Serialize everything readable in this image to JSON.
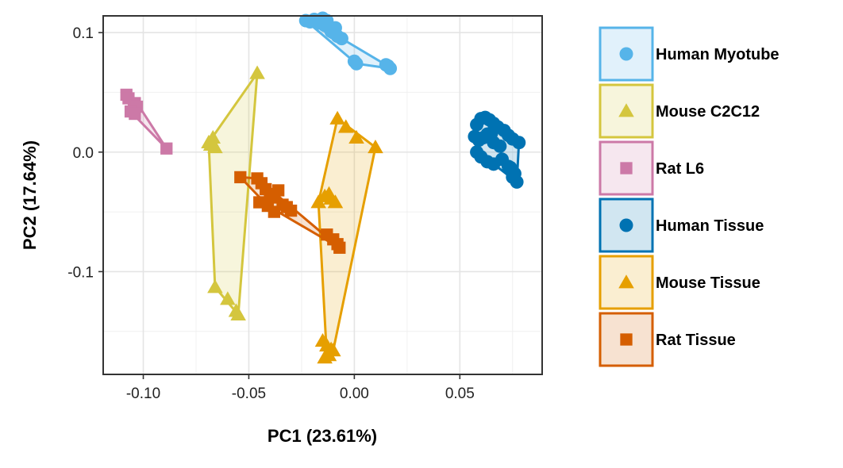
{
  "chart_data": {
    "type": "scatter",
    "xlabel": "PC1 (23.61%)",
    "ylabel": "PC2 (17.64%)",
    "xlim": [
      -0.119,
      0.089
    ],
    "ylim": [
      -0.186,
      0.114
    ],
    "x_ticks": [
      {
        "value": -0.1,
        "label": "-0.10"
      },
      {
        "value": -0.05,
        "label": "-0.05"
      },
      {
        "value": 0.0,
        "label": "0.00"
      },
      {
        "value": 0.05,
        "label": "0.05"
      }
    ],
    "y_ticks": [
      {
        "value": 0.1,
        "label": "0.1"
      },
      {
        "value": 0.0,
        "label": "0.0"
      },
      {
        "value": -0.1,
        "label": "-0.1"
      }
    ],
    "grid": true,
    "hulls": true,
    "legend_position": "right",
    "series": [
      {
        "name": "Human Myotube",
        "color": "#56B4E9",
        "marker": "circle",
        "points": [
          [
            -0.023,
            0.11
          ],
          [
            -0.021,
            0.109
          ],
          [
            -0.019,
            0.111
          ],
          [
            -0.017,
            0.108
          ],
          [
            -0.015,
            0.112
          ],
          [
            -0.013,
            0.11
          ],
          [
            -0.014,
            0.106
          ],
          [
            -0.012,
            0.104
          ],
          [
            -0.01,
            0.1
          ],
          [
            -0.008,
            0.097
          ],
          [
            -0.011,
            0.101
          ],
          [
            -0.009,
            0.104
          ],
          [
            -0.006,
            0.095
          ],
          [
            0.0,
            0.076
          ],
          [
            0.001,
            0.074
          ],
          [
            0.015,
            0.073
          ],
          [
            0.017,
            0.07
          ],
          [
            0.016,
            0.072
          ]
        ],
        "hull": [
          [
            -0.023,
            0.11
          ],
          [
            -0.015,
            0.112
          ],
          [
            -0.006,
            0.095
          ],
          [
            0.015,
            0.073
          ],
          [
            0.017,
            0.07
          ],
          [
            0.001,
            0.074
          ]
        ]
      },
      {
        "name": "Mouse C2C12",
        "color": "#D4C63E",
        "marker": "triangle",
        "points": [
          [
            -0.046,
            0.066
          ],
          [
            -0.067,
            0.012
          ],
          [
            -0.069,
            0.008
          ],
          [
            -0.066,
            0.004
          ],
          [
            -0.068,
            0.006
          ],
          [
            -0.066,
            -0.113
          ],
          [
            -0.06,
            -0.123
          ],
          [
            -0.056,
            -0.133
          ],
          [
            -0.055,
            -0.136
          ]
        ],
        "hull": [
          [
            -0.046,
            0.066
          ],
          [
            -0.069,
            0.008
          ],
          [
            -0.066,
            -0.113
          ],
          [
            -0.055,
            -0.136
          ]
        ]
      },
      {
        "name": "Rat L6",
        "color": "#CC79A7",
        "marker": "square",
        "points": [
          [
            -0.108,
            0.048
          ],
          [
            -0.107,
            0.045
          ],
          [
            -0.104,
            0.041
          ],
          [
            -0.103,
            0.038
          ],
          [
            -0.106,
            0.034
          ],
          [
            -0.104,
            0.032
          ],
          [
            -0.089,
            0.003
          ]
        ],
        "hull": [
          [
            -0.108,
            0.048
          ],
          [
            -0.103,
            0.041
          ],
          [
            -0.089,
            0.003
          ],
          [
            -0.106,
            0.034
          ]
        ]
      },
      {
        "name": "Human Tissue",
        "color": "#0072B2",
        "marker": "circle",
        "points": [
          [
            0.058,
            0.023
          ],
          [
            0.06,
            0.028
          ],
          [
            0.062,
            0.029
          ],
          [
            0.064,
            0.027
          ],
          [
            0.066,
            0.024
          ],
          [
            0.068,
            0.021
          ],
          [
            0.071,
            0.018
          ],
          [
            0.073,
            0.014
          ],
          [
            0.075,
            0.011
          ],
          [
            0.078,
            0.008
          ],
          [
            0.057,
            0.013
          ],
          [
            0.059,
            0.01
          ],
          [
            0.061,
            0.012
          ],
          [
            0.063,
            0.015
          ],
          [
            0.066,
            0.008
          ],
          [
            0.069,
            0.005
          ],
          [
            0.058,
            0.0
          ],
          [
            0.06,
            -0.004
          ],
          [
            0.063,
            -0.008
          ],
          [
            0.066,
            -0.01
          ],
          [
            0.07,
            -0.006
          ],
          [
            0.073,
            -0.012
          ],
          [
            0.076,
            -0.018
          ],
          [
            0.077,
            -0.025
          ],
          [
            0.075,
            -0.021
          ],
          [
            0.074,
            -0.013
          ],
          [
            0.065,
            0.016
          ]
        ],
        "hull": [
          [
            0.06,
            0.028
          ],
          [
            0.064,
            0.027
          ],
          [
            0.078,
            0.008
          ],
          [
            0.077,
            -0.025
          ],
          [
            0.066,
            -0.01
          ],
          [
            0.058,
            0.0
          ],
          [
            0.057,
            0.013
          ]
        ]
      },
      {
        "name": "Mouse Tissue",
        "color": "#E69F00",
        "marker": "triangle",
        "points": [
          [
            -0.008,
            0.028
          ],
          [
            -0.004,
            0.021
          ],
          [
            0.001,
            0.012
          ],
          [
            0.01,
            0.004
          ],
          [
            -0.011,
            -0.039
          ],
          [
            -0.014,
            -0.037
          ],
          [
            -0.009,
            -0.042
          ],
          [
            -0.012,
            -0.035
          ],
          [
            -0.017,
            -0.042
          ],
          [
            -0.013,
            -0.162
          ],
          [
            -0.012,
            -0.17
          ],
          [
            -0.014,
            -0.172
          ],
          [
            -0.01,
            -0.166
          ],
          [
            -0.015,
            -0.158
          ],
          [
            -0.011,
            -0.165
          ]
        ],
        "hull": [
          [
            -0.008,
            0.028
          ],
          [
            0.01,
            0.004
          ],
          [
            -0.01,
            -0.166
          ],
          [
            -0.013,
            -0.172
          ],
          [
            -0.017,
            -0.042
          ]
        ]
      },
      {
        "name": "Rat Tissue",
        "color": "#D55E00",
        "marker": "square",
        "points": [
          [
            -0.054,
            -0.021
          ],
          [
            -0.046,
            -0.022
          ],
          [
            -0.044,
            -0.026
          ],
          [
            -0.042,
            -0.031
          ],
          [
            -0.04,
            -0.035
          ],
          [
            -0.038,
            -0.038
          ],
          [
            -0.036,
            -0.032
          ],
          [
            -0.034,
            -0.044
          ],
          [
            -0.032,
            -0.046
          ],
          [
            -0.03,
            -0.049
          ],
          [
            -0.045,
            -0.042
          ],
          [
            -0.041,
            -0.045
          ],
          [
            -0.038,
            -0.05
          ],
          [
            -0.013,
            -0.069
          ],
          [
            -0.01,
            -0.073
          ],
          [
            -0.007,
            -0.08
          ],
          [
            -0.008,
            -0.077
          ]
        ],
        "hull": [
          [
            -0.054,
            -0.021
          ],
          [
            -0.046,
            -0.022
          ],
          [
            -0.007,
            -0.08
          ],
          [
            -0.041,
            -0.045
          ]
        ]
      }
    ]
  }
}
